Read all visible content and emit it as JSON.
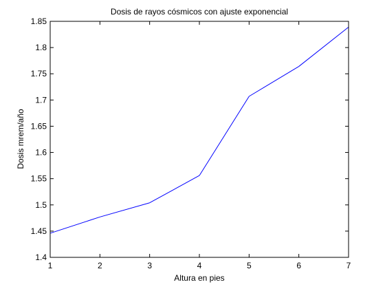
{
  "chart_data": {
    "type": "line",
    "title": "Dosis de rayos cósmicos con ajuste exponencial",
    "xlabel": "Altura en pies",
    "ylabel": "Dosis mrem/año",
    "xlim": [
      1,
      7
    ],
    "ylim": [
      1.4,
      1.85
    ],
    "xticks": [
      1,
      2,
      3,
      4,
      5,
      6,
      7
    ],
    "xtick_labels": [
      "1",
      "2",
      "3",
      "4",
      "5",
      "6",
      "7"
    ],
    "yticks": [
      1.4,
      1.45,
      1.5,
      1.55,
      1.6,
      1.65,
      1.7,
      1.75,
      1.8,
      1.85
    ],
    "ytick_labels": [
      "1.4",
      "1.45",
      "1.5",
      "1.55",
      "1.6",
      "1.65",
      "1.7",
      "1.75",
      "1.8",
      "1.85"
    ],
    "grid": false,
    "series": [
      {
        "x": [
          1,
          2,
          3,
          4,
          5,
          6,
          7
        ],
        "y": [
          1.446,
          1.477,
          1.504,
          1.556,
          1.707,
          1.764,
          1.839
        ],
        "color": "#0000ff"
      }
    ]
  }
}
